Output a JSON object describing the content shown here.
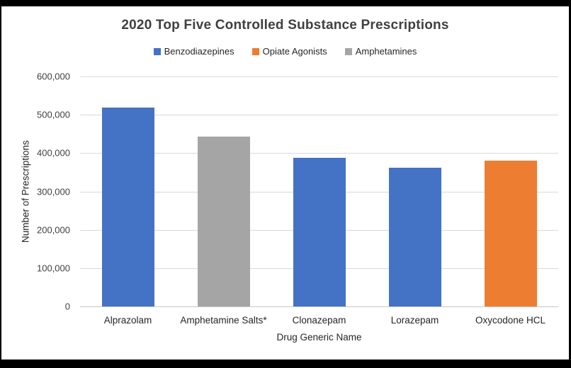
{
  "chart_data": {
    "type": "bar",
    "title": "2020 Top Five Controlled Substance Prescriptions",
    "xlabel": "Drug Generic Name",
    "ylabel": "Number of Prescriptions",
    "categories": [
      "Alprazolam",
      "Amphetamine Salts*",
      "Clonazepam",
      "Lorazepam",
      "Oxycodone HCL"
    ],
    "values": [
      518000,
      444000,
      388000,
      362000,
      380000
    ],
    "series_by_category": [
      "Benzodiazepines",
      "Amphetamines",
      "Benzodiazepines",
      "Benzodiazepines",
      "Opiate Agonists"
    ],
    "legend": [
      {
        "label": "Benzodiazepines",
        "color": "#4472C4"
      },
      {
        "label": "Opiate Agonists",
        "color": "#ED7D31"
      },
      {
        "label": "Amphetamines",
        "color": "#A5A5A5"
      }
    ],
    "legend_position": "top",
    "grid": true,
    "ylim": [
      0,
      600000
    ],
    "ytick_step": 100000,
    "ytick_labels": [
      "0",
      "100,000",
      "200,000",
      "300,000",
      "400,000",
      "500,000",
      "600,000"
    ]
  },
  "colors": {
    "benzodiazepines": "#4472C4",
    "opiate_agonists": "#ED7D31",
    "amphetamines": "#A5A5A5",
    "gridline": "#D9D9D9",
    "axis_line": "#C9C7C7",
    "title_text": "#404040",
    "axis_text": "#262626",
    "panel_background": "#FFFFFF",
    "frame_background": "#000000"
  }
}
